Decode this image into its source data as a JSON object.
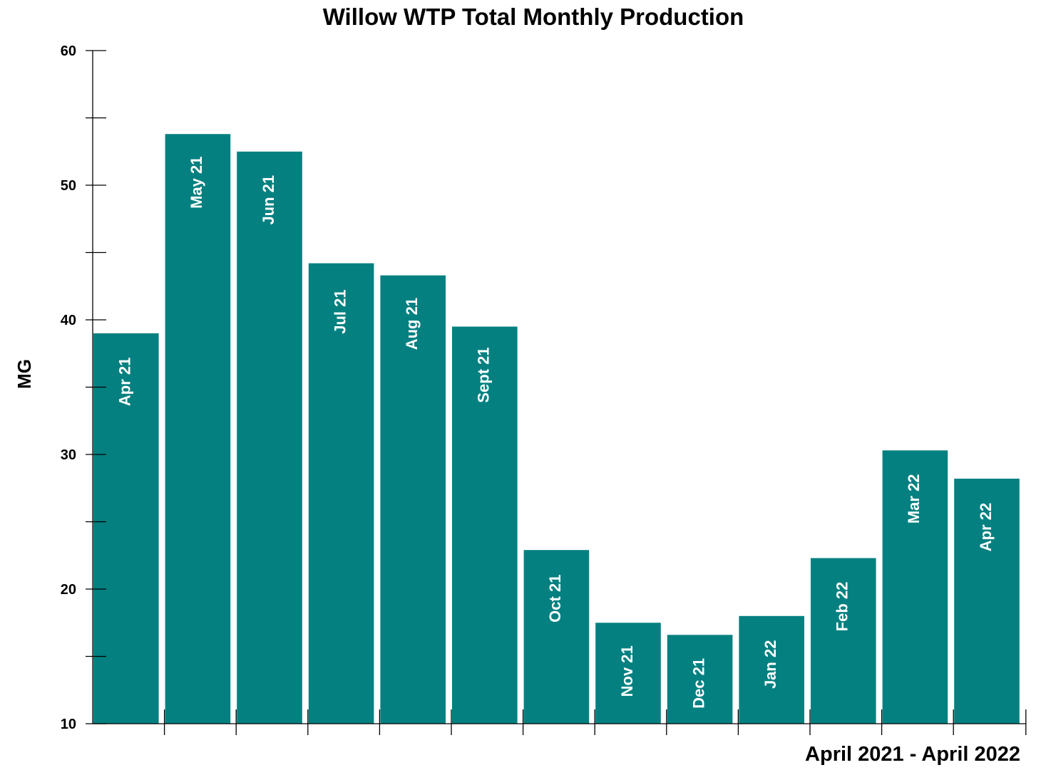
{
  "chart_data": {
    "type": "bar",
    "title": "Willow WTP Total Monthly Production",
    "xlabel": "April 2021 - April 2022",
    "ylabel": "MG",
    "ylim": [
      10,
      60
    ],
    "y_major_ticks": [
      10,
      20,
      30,
      40,
      50,
      60
    ],
    "y_minor_step": 5,
    "grid": false,
    "bar_color": "#048080",
    "categories": [
      "Apr 21",
      "May 21",
      "Jun 21",
      "Jul 21",
      "Aug 21",
      "Sept 21",
      "Oct 21",
      "Nov 21",
      "Dec 21",
      "Jan 22",
      "Feb 22",
      "Mar 22",
      "Apr 22"
    ],
    "values": [
      39.0,
      53.8,
      52.5,
      44.2,
      43.3,
      39.5,
      22.9,
      17.5,
      16.6,
      18.0,
      22.3,
      30.3,
      28.2
    ]
  }
}
